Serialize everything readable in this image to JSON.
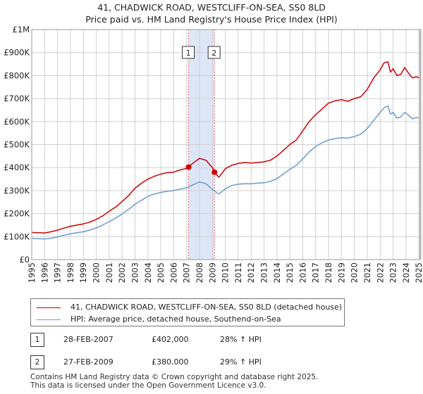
{
  "title": "41, CHADWICK ROAD, WESTCLIFF-ON-SEA, SS0 8LD",
  "subtitle": "Price paid vs. HM Land Registry's House Price Index (HPI)",
  "colors": {
    "property": "#cc0000",
    "hpi": "#6a9ad0",
    "band": "#dde6f7",
    "marker_line": "#e06060"
  },
  "chart_data": {
    "type": "line",
    "xlim": [
      1995,
      2025.1
    ],
    "ylim": [
      0,
      1000000
    ],
    "y_ticks": [
      {
        "value": 0,
        "label": "£0"
      },
      {
        "value": 100000,
        "label": "£100K"
      },
      {
        "value": 200000,
        "label": "£200K"
      },
      {
        "value": 300000,
        "label": "£300K"
      },
      {
        "value": 400000,
        "label": "£400K"
      },
      {
        "value": 500000,
        "label": "£500K"
      },
      {
        "value": 600000,
        "label": "£600K"
      },
      {
        "value": 700000,
        "label": "£700K"
      },
      {
        "value": 800000,
        "label": "£800K"
      },
      {
        "value": 900000,
        "label": "£900K"
      },
      {
        "value": 1000000,
        "label": "£1M"
      }
    ],
    "x_ticks": [
      "1995",
      "1996",
      "1997",
      "1998",
      "1999",
      "2000",
      "2001",
      "2002",
      "2003",
      "2004",
      "2005",
      "2006",
      "2007",
      "2008",
      "2009",
      "2010",
      "2011",
      "2012",
      "2013",
      "2014",
      "2015",
      "2016",
      "2017",
      "2018",
      "2019",
      "2020",
      "2021",
      "2022",
      "2023",
      "2024",
      "2025"
    ],
    "highlight_band": [
      2007.16,
      2009.16
    ],
    "grid": true,
    "series": [
      {
        "name": "41, CHADWICK ROAD, WESTCLIFF-ON-SEA, SS0 8LD (detached house)",
        "color": "#cc0000",
        "x": [
          1995.0,
          1995.5,
          1996.0,
          1996.5,
          1997.0,
          1997.5,
          1998.0,
          1998.5,
          1999.0,
          1999.5,
          2000.0,
          2000.5,
          2001.0,
          2001.5,
          2002.0,
          2002.5,
          2003.0,
          2003.5,
          2004.0,
          2004.5,
          2005.0,
          2005.5,
          2006.0,
          2006.5,
          2007.0,
          2007.16,
          2007.5,
          2008.0,
          2008.5,
          2009.0,
          2009.16,
          2009.5,
          2010.0,
          2010.5,
          2011.0,
          2011.5,
          2012.0,
          2012.5,
          2013.0,
          2013.5,
          2014.0,
          2014.5,
          2015.0,
          2015.5,
          2016.0,
          2016.5,
          2017.0,
          2017.5,
          2018.0,
          2018.5,
          2019.0,
          2019.5,
          2020.0,
          2020.5,
          2021.0,
          2021.5,
          2022.0,
          2022.3,
          2022.6,
          2022.8,
          2023.0,
          2023.3,
          2023.6,
          2023.9,
          2024.2,
          2024.5,
          2024.8,
          2025.0
        ],
        "values": [
          118000,
          117000,
          116000,
          121000,
          128000,
          137000,
          145000,
          150000,
          155000,
          163000,
          175000,
          190000,
          210000,
          228000,
          252000,
          278000,
          310000,
          332000,
          350000,
          362000,
          372000,
          378000,
          380000,
          390000,
          396000,
          402000,
          420000,
          440000,
          432000,
          400000,
          380000,
          358000,
          395000,
          410000,
          418000,
          422000,
          420000,
          422000,
          425000,
          432000,
          450000,
          475000,
          500000,
          520000,
          560000,
          600000,
          630000,
          655000,
          680000,
          690000,
          695000,
          688000,
          700000,
          708000,
          740000,
          790000,
          825000,
          855000,
          860000,
          815000,
          830000,
          800000,
          805000,
          835000,
          810000,
          790000,
          795000,
          790000
        ]
      },
      {
        "name": "HPI: Average price, detached house, Southend-on-Sea",
        "color": "#6a9ad0",
        "x": [
          1995.0,
          1995.5,
          1996.0,
          1996.5,
          1997.0,
          1997.5,
          1998.0,
          1998.5,
          1999.0,
          1999.5,
          2000.0,
          2000.5,
          2001.0,
          2001.5,
          2002.0,
          2002.5,
          2003.0,
          2003.5,
          2004.0,
          2004.5,
          2005.0,
          2005.5,
          2006.0,
          2006.5,
          2007.0,
          2007.5,
          2008.0,
          2008.5,
          2009.0,
          2009.5,
          2010.0,
          2010.5,
          2011.0,
          2011.5,
          2012.0,
          2012.5,
          2013.0,
          2013.5,
          2014.0,
          2014.5,
          2015.0,
          2015.5,
          2016.0,
          2016.5,
          2017.0,
          2017.5,
          2018.0,
          2018.5,
          2019.0,
          2019.5,
          2020.0,
          2020.5,
          2021.0,
          2021.5,
          2022.0,
          2022.3,
          2022.6,
          2022.8,
          2023.0,
          2023.3,
          2023.6,
          2023.9,
          2024.2,
          2024.5,
          2024.8,
          2025.0
        ],
        "values": [
          92000,
          91000,
          90000,
          93000,
          99000,
          106000,
          112000,
          117000,
          121000,
          128000,
          138000,
          150000,
          165000,
          180000,
          198000,
          218000,
          240000,
          258000,
          275000,
          285000,
          292000,
          297000,
          300000,
          306000,
          312000,
          325000,
          338000,
          330000,
          305000,
          285000,
          308000,
          322000,
          328000,
          330000,
          330000,
          332000,
          334000,
          340000,
          352000,
          372000,
          392000,
          410000,
          438000,
          468000,
          492000,
          508000,
          520000,
          526000,
          530000,
          528000,
          535000,
          545000,
          570000,
          605000,
          640000,
          660000,
          668000,
          632000,
          640000,
          615000,
          620000,
          640000,
          628000,
          612000,
          618000,
          614000
        ]
      }
    ],
    "annotations": [
      {
        "label": "1",
        "x": 2007.16,
        "y": 402000
      },
      {
        "label": "2",
        "x": 2009.16,
        "y": 380000
      }
    ]
  },
  "legend": {
    "property_label": "41, CHADWICK ROAD, WESTCLIFF-ON-SEA, SS0 8LD (detached house)",
    "hpi_label": "HPI: Average price, detached house, Southend-on-Sea"
  },
  "sales": [
    {
      "num": "1",
      "date": "28-FEB-2007",
      "price": "£402,000",
      "hpi": "28% ↑ HPI"
    },
    {
      "num": "2",
      "date": "27-FEB-2009",
      "price": "£380,000",
      "hpi": "29% ↑ HPI"
    }
  ],
  "footer": {
    "line1": "Contains HM Land Registry data © Crown copyright and database right 2025.",
    "line2": "This data is licensed under the Open Government Licence v3.0."
  }
}
